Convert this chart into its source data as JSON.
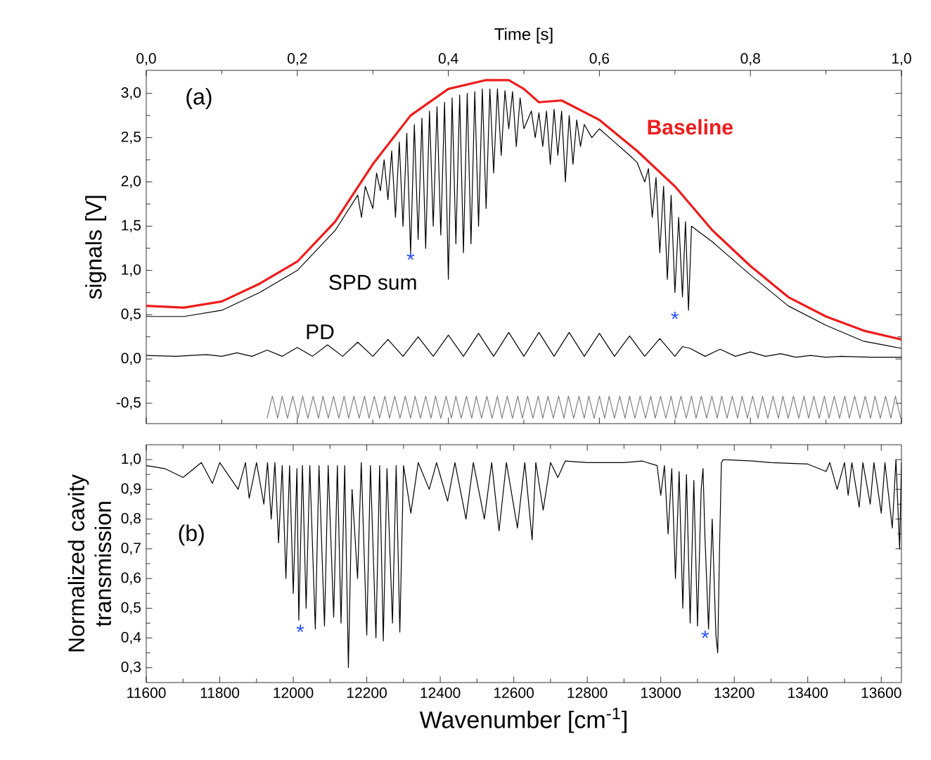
{
  "chart_data": [
    {
      "type": "line",
      "xlabel": "Time [s]",
      "ylabel": "signals [V]",
      "xlim": [
        0,
        1
      ],
      "xticks": [
        {
          "value": 0,
          "label": "0,0"
        },
        {
          "value": 0.2,
          "label": "0,2"
        },
        {
          "value": 0.4,
          "label": "0,4"
        },
        {
          "value": 0.6,
          "label": "0,6"
        },
        {
          "value": 0.8,
          "label": "0,8"
        },
        {
          "value": 1.0,
          "label": "1,0"
        }
      ],
      "ylim": [
        -0.73,
        3.26
      ],
      "yticks": [
        {
          "value": -0.5,
          "label": "-0,5"
        },
        {
          "value": 0,
          "label": "0,0"
        },
        {
          "value": 0.5,
          "label": "0,5"
        },
        {
          "value": 1.0,
          "label": "1,0"
        },
        {
          "value": 1.5,
          "label": "1,5"
        },
        {
          "value": 2.0,
          "label": "2,0"
        },
        {
          "value": 2.5,
          "label": "2,5"
        },
        {
          "value": 3.0,
          "label": "3,0"
        }
      ],
      "annotations": [
        "(a)",
        "*",
        "*"
      ],
      "series": [
        {
          "name": "Baseline",
          "color": "#ee1c1c",
          "x": [
            0,
            0.05,
            0.1,
            0.15,
            0.2,
            0.25,
            0.3,
            0.35,
            0.4,
            0.45,
            0.48,
            0.5,
            0.52,
            0.55,
            0.6,
            0.65,
            0.7,
            0.75,
            0.8,
            0.85,
            0.9,
            0.95,
            1.0
          ],
          "values": [
            0.6,
            0.58,
            0.65,
            0.85,
            1.1,
            1.55,
            2.2,
            2.75,
            3.05,
            3.15,
            3.15,
            3.05,
            2.9,
            2.92,
            2.7,
            2.35,
            1.95,
            1.45,
            1.05,
            0.7,
            0.48,
            0.32,
            0.22
          ]
        },
        {
          "name": "SPD sum",
          "color": "#000000",
          "x": [
            0.0,
            0.05,
            0.1,
            0.15,
            0.2,
            0.25,
            0.28,
            0.285,
            0.29,
            0.3,
            0.305,
            0.31,
            0.315,
            0.32,
            0.325,
            0.33,
            0.335,
            0.34,
            0.345,
            0.35,
            0.355,
            0.36,
            0.365,
            0.37,
            0.375,
            0.38,
            0.385,
            0.39,
            0.395,
            0.4,
            0.405,
            0.41,
            0.415,
            0.42,
            0.425,
            0.43,
            0.435,
            0.44,
            0.445,
            0.45,
            0.455,
            0.46,
            0.465,
            0.47,
            0.475,
            0.48,
            0.485,
            0.49,
            0.495,
            0.5,
            0.51,
            0.515,
            0.52,
            0.525,
            0.53,
            0.535,
            0.54,
            0.545,
            0.55,
            0.555,
            0.56,
            0.565,
            0.57,
            0.575,
            0.58,
            0.59,
            0.6,
            0.62,
            0.64,
            0.65,
            0.66,
            0.665,
            0.67,
            0.675,
            0.68,
            0.685,
            0.69,
            0.695,
            0.7,
            0.705,
            0.71,
            0.714,
            0.718,
            0.722,
            0.75,
            0.8,
            0.85,
            0.9,
            0.95,
            1.0
          ],
          "values": [
            0.48,
            0.48,
            0.55,
            0.75,
            1.0,
            1.45,
            1.85,
            1.6,
            1.95,
            1.7,
            2.1,
            1.9,
            2.25,
            1.8,
            2.35,
            1.6,
            2.45,
            1.5,
            2.55,
            1.2,
            2.65,
            1.35,
            2.72,
            1.25,
            2.8,
            1.5,
            2.85,
            1.4,
            2.9,
            0.9,
            2.95,
            1.3,
            2.98,
            1.2,
            3.0,
            1.3,
            3.02,
            1.5,
            3.05,
            1.7,
            3.05,
            2.1,
            3.05,
            2.3,
            3.03,
            2.6,
            3.02,
            2.4,
            2.95,
            2.6,
            2.8,
            2.5,
            2.78,
            2.4,
            2.8,
            2.2,
            2.82,
            2.3,
            2.8,
            2.0,
            2.75,
            2.2,
            2.7,
            2.4,
            2.65,
            2.5,
            2.6,
            2.45,
            2.3,
            2.22,
            2.0,
            2.15,
            1.6,
            2.05,
            1.2,
            1.95,
            0.9,
            1.85,
            0.75,
            1.6,
            0.7,
            1.55,
            0.55,
            1.5,
            1.32,
            0.95,
            0.6,
            0.38,
            0.2,
            0.12
          ]
        },
        {
          "name": "PD",
          "color": "#000000",
          "x": [
            0.0,
            0.04,
            0.08,
            0.1,
            0.12,
            0.14,
            0.16,
            0.18,
            0.2,
            0.22,
            0.24,
            0.26,
            0.28,
            0.3,
            0.32,
            0.34,
            0.36,
            0.38,
            0.4,
            0.42,
            0.44,
            0.46,
            0.48,
            0.5,
            0.52,
            0.54,
            0.56,
            0.58,
            0.6,
            0.62,
            0.64,
            0.66,
            0.68,
            0.7,
            0.71,
            0.72,
            0.74,
            0.76,
            0.78,
            0.8,
            0.82,
            0.84,
            0.86,
            0.88,
            0.9,
            0.92,
            0.96,
            1.0
          ],
          "values": [
            0.04,
            0.03,
            0.05,
            0.03,
            0.07,
            0.03,
            0.1,
            0.03,
            0.13,
            0.03,
            0.16,
            0.03,
            0.19,
            0.03,
            0.22,
            0.03,
            0.25,
            0.03,
            0.27,
            0.03,
            0.29,
            0.03,
            0.3,
            0.03,
            0.3,
            0.03,
            0.3,
            0.03,
            0.29,
            0.03,
            0.26,
            0.03,
            0.23,
            0.03,
            0.14,
            0.12,
            0.03,
            0.11,
            0.03,
            0.08,
            0.03,
            0.06,
            0.02,
            0.04,
            0.02,
            0.03,
            0.02,
            0.02
          ]
        },
        {
          "color": "#808080",
          "x": [
            0.16,
            0.167,
            0.174,
            0.18,
            0.187,
            0.194,
            0.201,
            0.207,
            0.214,
            0.221,
            0.228,
            0.234,
            0.241,
            0.248,
            0.255,
            0.262,
            0.268,
            0.275,
            0.282,
            0.289,
            0.295,
            0.302,
            0.309,
            0.316,
            0.322,
            0.329,
            0.336,
            0.343,
            0.35,
            0.356,
            0.363,
            0.37,
            0.377,
            0.383,
            0.39,
            0.397,
            0.404,
            0.41,
            0.417,
            0.424,
            0.431,
            0.437,
            0.444,
            0.451,
            0.458,
            0.465,
            0.471,
            0.478,
            0.485,
            0.492,
            0.498,
            0.505,
            0.512,
            0.519,
            0.525,
            0.532,
            0.539,
            0.546,
            0.553,
            0.559,
            0.566,
            0.573,
            0.58,
            0.586,
            0.593,
            0.6,
            0.607,
            0.613,
            0.62,
            0.627,
            0.634,
            0.64,
            0.647,
            0.654,
            0.661,
            0.668,
            0.674,
            0.681,
            0.688,
            0.695,
            0.701,
            0.708,
            0.715,
            0.722,
            0.728,
            0.735,
            0.742,
            0.749,
            0.756,
            0.762,
            0.769,
            0.776,
            0.783,
            0.789,
            0.796,
            0.803,
            0.81,
            0.816,
            0.823,
            0.83,
            0.837,
            0.843,
            0.85,
            0.857,
            0.864,
            0.871,
            0.877,
            0.884,
            0.891,
            0.898,
            0.904,
            0.911,
            0.918,
            0.925,
            0.931,
            0.938,
            0.945,
            0.952,
            0.959,
            0.965,
            0.972,
            0.979,
            0.986,
            0.992,
            0.999
          ],
          "values": [
            -0.67,
            -0.42,
            -0.67,
            -0.42,
            -0.67,
            -0.42,
            -0.67,
            -0.42,
            -0.67,
            -0.42,
            -0.67,
            -0.42,
            -0.67,
            -0.42,
            -0.67,
            -0.42,
            -0.67,
            -0.42,
            -0.67,
            -0.42,
            -0.67,
            -0.42,
            -0.67,
            -0.42,
            -0.67,
            -0.42,
            -0.67,
            -0.42,
            -0.67,
            -0.42,
            -0.67,
            -0.42,
            -0.67,
            -0.42,
            -0.67,
            -0.42,
            -0.67,
            -0.42,
            -0.67,
            -0.42,
            -0.67,
            -0.42,
            -0.67,
            -0.42,
            -0.67,
            -0.42,
            -0.67,
            -0.42,
            -0.67,
            -0.42,
            -0.67,
            -0.42,
            -0.67,
            -0.42,
            -0.67,
            -0.42,
            -0.67,
            -0.42,
            -0.67,
            -0.42,
            -0.67,
            -0.42,
            -0.67,
            -0.42,
            -0.67,
            -0.42,
            -0.67,
            -0.42,
            -0.67,
            -0.42,
            -0.67,
            -0.42,
            -0.67,
            -0.42,
            -0.67,
            -0.42,
            -0.67,
            -0.42,
            -0.67,
            -0.42,
            -0.67,
            -0.42,
            -0.67,
            -0.42,
            -0.67,
            -0.42,
            -0.67,
            -0.42,
            -0.67,
            -0.42,
            -0.67,
            -0.42,
            -0.67,
            -0.42,
            -0.67,
            -0.42,
            -0.67,
            -0.42,
            -0.67,
            -0.42,
            -0.67,
            -0.42,
            -0.67,
            -0.42,
            -0.67,
            -0.42,
            -0.67,
            -0.42,
            -0.67,
            -0.42,
            -0.67,
            -0.42,
            -0.67,
            -0.42,
            -0.67,
            -0.42,
            -0.67,
            -0.42,
            -0.67,
            -0.42,
            -0.67,
            -0.42,
            -0.67,
            -0.42,
            -0.67
          ]
        }
      ]
    },
    {
      "type": "line",
      "xlabel": "Wavenumber [cm$^{-1}$]",
      "ylabel": "Normalized cavity transmission",
      "xlim": [
        11600,
        13655
      ],
      "xticks": [
        11600,
        11800,
        12000,
        12200,
        12400,
        12600,
        12800,
        13000,
        13200,
        13400,
        13600
      ],
      "ylim": [
        0.25,
        1.05
      ],
      "yticks": [
        {
          "value": 0.3,
          "label": "0,3"
        },
        {
          "value": 0.4,
          "label": "0,4"
        },
        {
          "value": 0.5,
          "label": "0,5"
        },
        {
          "value": 0.6,
          "label": "0,6"
        },
        {
          "value": 0.7,
          "label": "0,7"
        },
        {
          "value": 0.8,
          "label": "0,8"
        },
        {
          "value": 0.9,
          "label": "0,9"
        },
        {
          "value": 1.0,
          "label": "1,0"
        }
      ],
      "annotations": [
        "(b)",
        "*",
        "*"
      ],
      "series": [
        {
          "color": "#000000",
          "x": [
            11600,
            11650,
            11700,
            11750,
            11780,
            11800,
            11850,
            11870,
            11880,
            11900,
            11920,
            11930,
            11940,
            11950,
            11960,
            11970,
            11980,
            11990,
            12000,
            12010,
            12015,
            12025,
            12035,
            12045,
            12060,
            12070,
            12085,
            12095,
            12110,
            12120,
            12130,
            12140,
            12150,
            12160,
            12175,
            12185,
            12200,
            12210,
            12225,
            12235,
            12245,
            12255,
            12270,
            12280,
            12290,
            12300,
            12320,
            12340,
            12370,
            12390,
            12420,
            12440,
            12470,
            12490,
            12520,
            12540,
            12560,
            12580,
            12610,
            12630,
            12650,
            12660,
            12680,
            12700,
            12720,
            12740,
            12800,
            12900,
            12950,
            12990,
            13000,
            13010,
            13020,
            13030,
            13040,
            13050,
            13060,
            13070,
            13080,
            13090,
            13100,
            13110,
            13115,
            13120,
            13130,
            13140,
            13150,
            13155,
            13160,
            13165,
            13170,
            13250,
            13300,
            13400,
            13450,
            13460,
            13480,
            13500,
            13510,
            13520,
            13540,
            13550,
            13570,
            13580,
            13600,
            13610,
            13630,
            13640,
            13650,
            13655
          ],
          "values": [
            0.98,
            0.97,
            0.94,
            0.99,
            0.92,
            0.99,
            0.9,
            0.99,
            0.87,
            0.99,
            0.85,
            0.99,
            0.8,
            0.99,
            0.72,
            0.98,
            0.6,
            0.98,
            0.55,
            0.97,
            0.46,
            0.98,
            0.5,
            0.98,
            0.43,
            0.98,
            0.44,
            0.98,
            0.47,
            0.98,
            0.45,
            0.98,
            0.3,
            0.9,
            0.6,
            0.99,
            0.41,
            0.98,
            0.4,
            0.98,
            0.39,
            0.97,
            0.45,
            0.98,
            0.42,
            0.98,
            0.82,
            0.99,
            0.9,
            0.99,
            0.86,
            0.99,
            0.8,
            0.99,
            0.8,
            0.99,
            0.76,
            0.99,
            0.77,
            0.99,
            0.73,
            0.99,
            0.83,
            0.99,
            0.94,
            0.995,
            0.99,
            0.99,
            0.995,
            0.98,
            0.88,
            0.98,
            0.75,
            0.97,
            0.6,
            0.96,
            0.5,
            0.95,
            0.45,
            0.93,
            0.44,
            0.9,
            0.97,
            0.75,
            0.43,
            0.8,
            0.41,
            0.35,
            0.7,
            0.99,
            1.0,
            0.995,
            0.99,
            0.985,
            0.96,
            0.99,
            0.9,
            0.99,
            0.88,
            0.99,
            0.84,
            0.99,
            0.85,
            0.99,
            0.82,
            0.99,
            0.77,
            1.0,
            0.7,
            0.99
          ]
        }
      ]
    }
  ]
}
